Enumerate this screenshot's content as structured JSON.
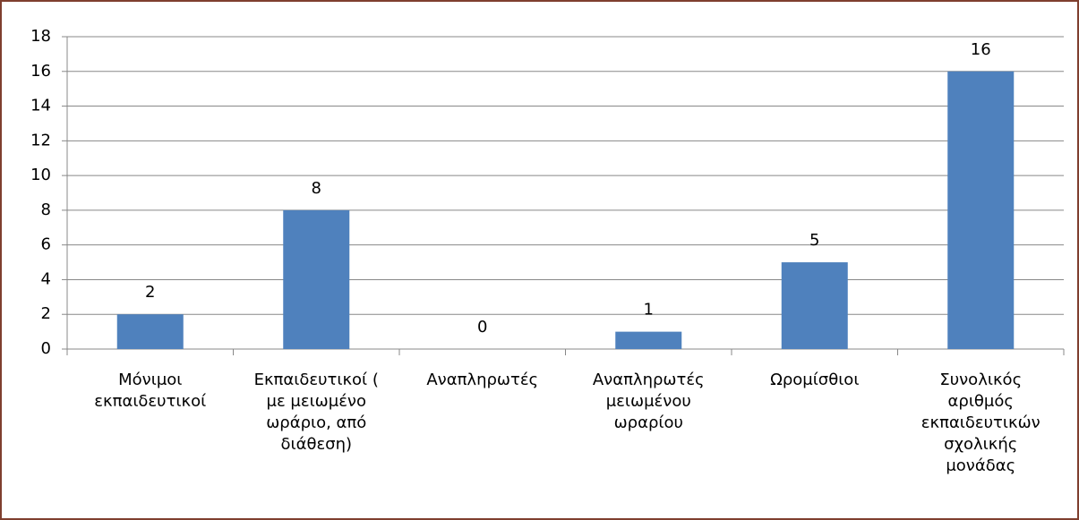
{
  "chart_data": {
    "type": "bar",
    "categories": [
      "Μόνιμοι εκπαιδευτικοί",
      "Εκπαιδευτικοί ( με μειωμένο ωράριο, από διάθεση)",
      "Αναπληρωτές",
      "Αναπληρωτές μειωμένου ωραρίου",
      "Ωρομίσθιοι",
      "Συνολικός αριθμός εκπαιδευτικών σχολικής μονάδας"
    ],
    "values": [
      2,
      8,
      0,
      1,
      5,
      16
    ],
    "color": "#4f81bd",
    "ylim": [
      0,
      18
    ],
    "yticks": [
      0,
      2,
      4,
      6,
      8,
      10,
      12,
      14,
      16,
      18
    ],
    "grid": true,
    "data_labels": true
  }
}
